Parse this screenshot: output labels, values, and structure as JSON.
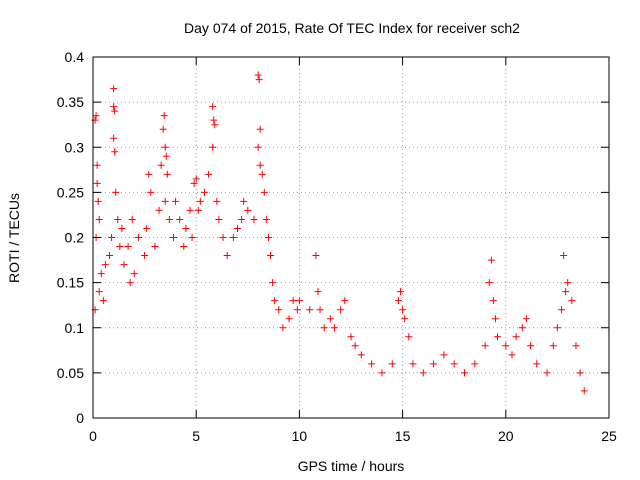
{
  "chart_data": {
    "type": "scatter",
    "title": "Day 074 of 2015, Rate Of TEC Index for receiver sch2",
    "xlabel": "GPS time / hours",
    "ylabel": "ROTI / TECUs",
    "xlim": [
      0,
      25
    ],
    "ylim": [
      0,
      0.4
    ],
    "xticks": [
      0,
      5,
      10,
      15,
      20,
      25
    ],
    "xtick_labels": [
      "0",
      "5",
      "10",
      "15",
      "20",
      "25"
    ],
    "yticks": [
      0,
      0.05,
      0.1,
      0.15,
      0.2,
      0.25,
      0.3,
      0.35,
      0.4
    ],
    "ytick_labels": [
      "0",
      "0.05",
      "0.1",
      "0.15",
      "0.2",
      "0.25",
      "0.3",
      "0.35",
      "0.4"
    ],
    "grid": true,
    "marker": "+",
    "color": "#ff0000",
    "series": [
      {
        "points": [
          [
            0.1,
            0.33
          ],
          [
            0.15,
            0.335
          ],
          [
            0.2,
            0.28
          ],
          [
            0.2,
            0.26
          ],
          [
            0.25,
            0.24
          ],
          [
            0.3,
            0.22
          ],
          [
            0.15,
            0.2
          ],
          [
            0.4,
            0.16
          ],
          [
            0.5,
            0.13
          ],
          [
            0.6,
            0.17
          ],
          [
            0.1,
            0.12
          ],
          [
            0.3,
            0.14
          ],
          [
            1.0,
            0.365
          ],
          [
            1.0,
            0.345
          ],
          [
            1.05,
            0.34
          ],
          [
            1.0,
            0.31
          ],
          [
            1.05,
            0.295
          ],
          [
            1.1,
            0.25
          ],
          [
            1.2,
            0.22
          ],
          [
            0.9,
            0.2
          ],
          [
            0.8,
            0.18
          ],
          [
            1.3,
            0.19
          ],
          [
            1.5,
            0.17
          ],
          [
            1.4,
            0.21
          ],
          [
            1.7,
            0.19
          ],
          [
            1.8,
            0.15
          ],
          [
            2.0,
            0.16
          ],
          [
            1.9,
            0.22
          ],
          [
            2.2,
            0.2
          ],
          [
            2.5,
            0.18
          ],
          [
            2.7,
            0.27
          ],
          [
            2.8,
            0.25
          ],
          [
            2.6,
            0.21
          ],
          [
            3.0,
            0.19
          ],
          [
            3.2,
            0.23
          ],
          [
            3.3,
            0.28
          ],
          [
            3.4,
            0.32
          ],
          [
            3.45,
            0.335
          ],
          [
            3.5,
            0.3
          ],
          [
            3.55,
            0.29
          ],
          [
            3.6,
            0.27
          ],
          [
            3.5,
            0.24
          ],
          [
            3.7,
            0.22
          ],
          [
            3.9,
            0.2
          ],
          [
            4.0,
            0.24
          ],
          [
            4.2,
            0.22
          ],
          [
            4.4,
            0.19
          ],
          [
            4.5,
            0.21
          ],
          [
            4.7,
            0.23
          ],
          [
            4.8,
            0.2
          ],
          [
            4.9,
            0.26
          ],
          [
            5.0,
            0.265
          ],
          [
            5.1,
            0.23
          ],
          [
            5.2,
            0.24
          ],
          [
            5.4,
            0.25
          ],
          [
            5.6,
            0.27
          ],
          [
            5.8,
            0.345
          ],
          [
            5.85,
            0.33
          ],
          [
            5.9,
            0.325
          ],
          [
            5.8,
            0.3
          ],
          [
            6.0,
            0.24
          ],
          [
            6.1,
            0.22
          ],
          [
            6.3,
            0.2
          ],
          [
            6.5,
            0.18
          ],
          [
            6.8,
            0.2
          ],
          [
            7.0,
            0.21
          ],
          [
            7.2,
            0.22
          ],
          [
            7.3,
            0.24
          ],
          [
            7.5,
            0.23
          ],
          [
            7.8,
            0.22
          ],
          [
            8.0,
            0.38
          ],
          [
            8.05,
            0.375
          ],
          [
            8.1,
            0.32
          ],
          [
            8.0,
            0.3
          ],
          [
            8.1,
            0.28
          ],
          [
            8.2,
            0.27
          ],
          [
            8.3,
            0.25
          ],
          [
            8.4,
            0.22
          ],
          [
            8.5,
            0.2
          ],
          [
            8.6,
            0.18
          ],
          [
            8.7,
            0.15
          ],
          [
            8.8,
            0.13
          ],
          [
            9.0,
            0.12
          ],
          [
            9.2,
            0.1
          ],
          [
            9.5,
            0.11
          ],
          [
            9.7,
            0.13
          ],
          [
            9.9,
            0.12
          ],
          [
            10.0,
            0.13
          ],
          [
            10.5,
            0.12
          ],
          [
            10.8,
            0.18
          ],
          [
            10.9,
            0.14
          ],
          [
            11.0,
            0.12
          ],
          [
            11.2,
            0.1
          ],
          [
            11.5,
            0.11
          ],
          [
            11.7,
            0.1
          ],
          [
            12.0,
            0.12
          ],
          [
            12.2,
            0.13
          ],
          [
            12.5,
            0.09
          ],
          [
            12.7,
            0.08
          ],
          [
            13.0,
            0.07
          ],
          [
            13.5,
            0.06
          ],
          [
            14.0,
            0.05
          ],
          [
            14.5,
            0.06
          ],
          [
            14.8,
            0.13
          ],
          [
            14.9,
            0.14
          ],
          [
            15.0,
            0.12
          ],
          [
            15.1,
            0.11
          ],
          [
            15.3,
            0.09
          ],
          [
            15.5,
            0.06
          ],
          [
            16.0,
            0.05
          ],
          [
            16.5,
            0.06
          ],
          [
            17.0,
            0.07
          ],
          [
            17.5,
            0.06
          ],
          [
            18.0,
            0.05
          ],
          [
            18.5,
            0.06
          ],
          [
            19.0,
            0.08
          ],
          [
            19.2,
            0.15
          ],
          [
            19.3,
            0.175
          ],
          [
            19.4,
            0.13
          ],
          [
            19.5,
            0.11
          ],
          [
            19.6,
            0.09
          ],
          [
            20.0,
            0.08
          ],
          [
            20.3,
            0.07
          ],
          [
            20.5,
            0.09
          ],
          [
            20.8,
            0.1
          ],
          [
            21.0,
            0.11
          ],
          [
            21.2,
            0.08
          ],
          [
            21.5,
            0.06
          ],
          [
            22.0,
            0.05
          ],
          [
            22.3,
            0.08
          ],
          [
            22.5,
            0.1
          ],
          [
            22.7,
            0.12
          ],
          [
            22.8,
            0.18
          ],
          [
            22.9,
            0.14
          ],
          [
            23.0,
            0.15
          ],
          [
            23.2,
            0.13
          ],
          [
            23.4,
            0.08
          ],
          [
            23.6,
            0.05
          ],
          [
            23.8,
            0.03
          ]
        ]
      }
    ]
  }
}
